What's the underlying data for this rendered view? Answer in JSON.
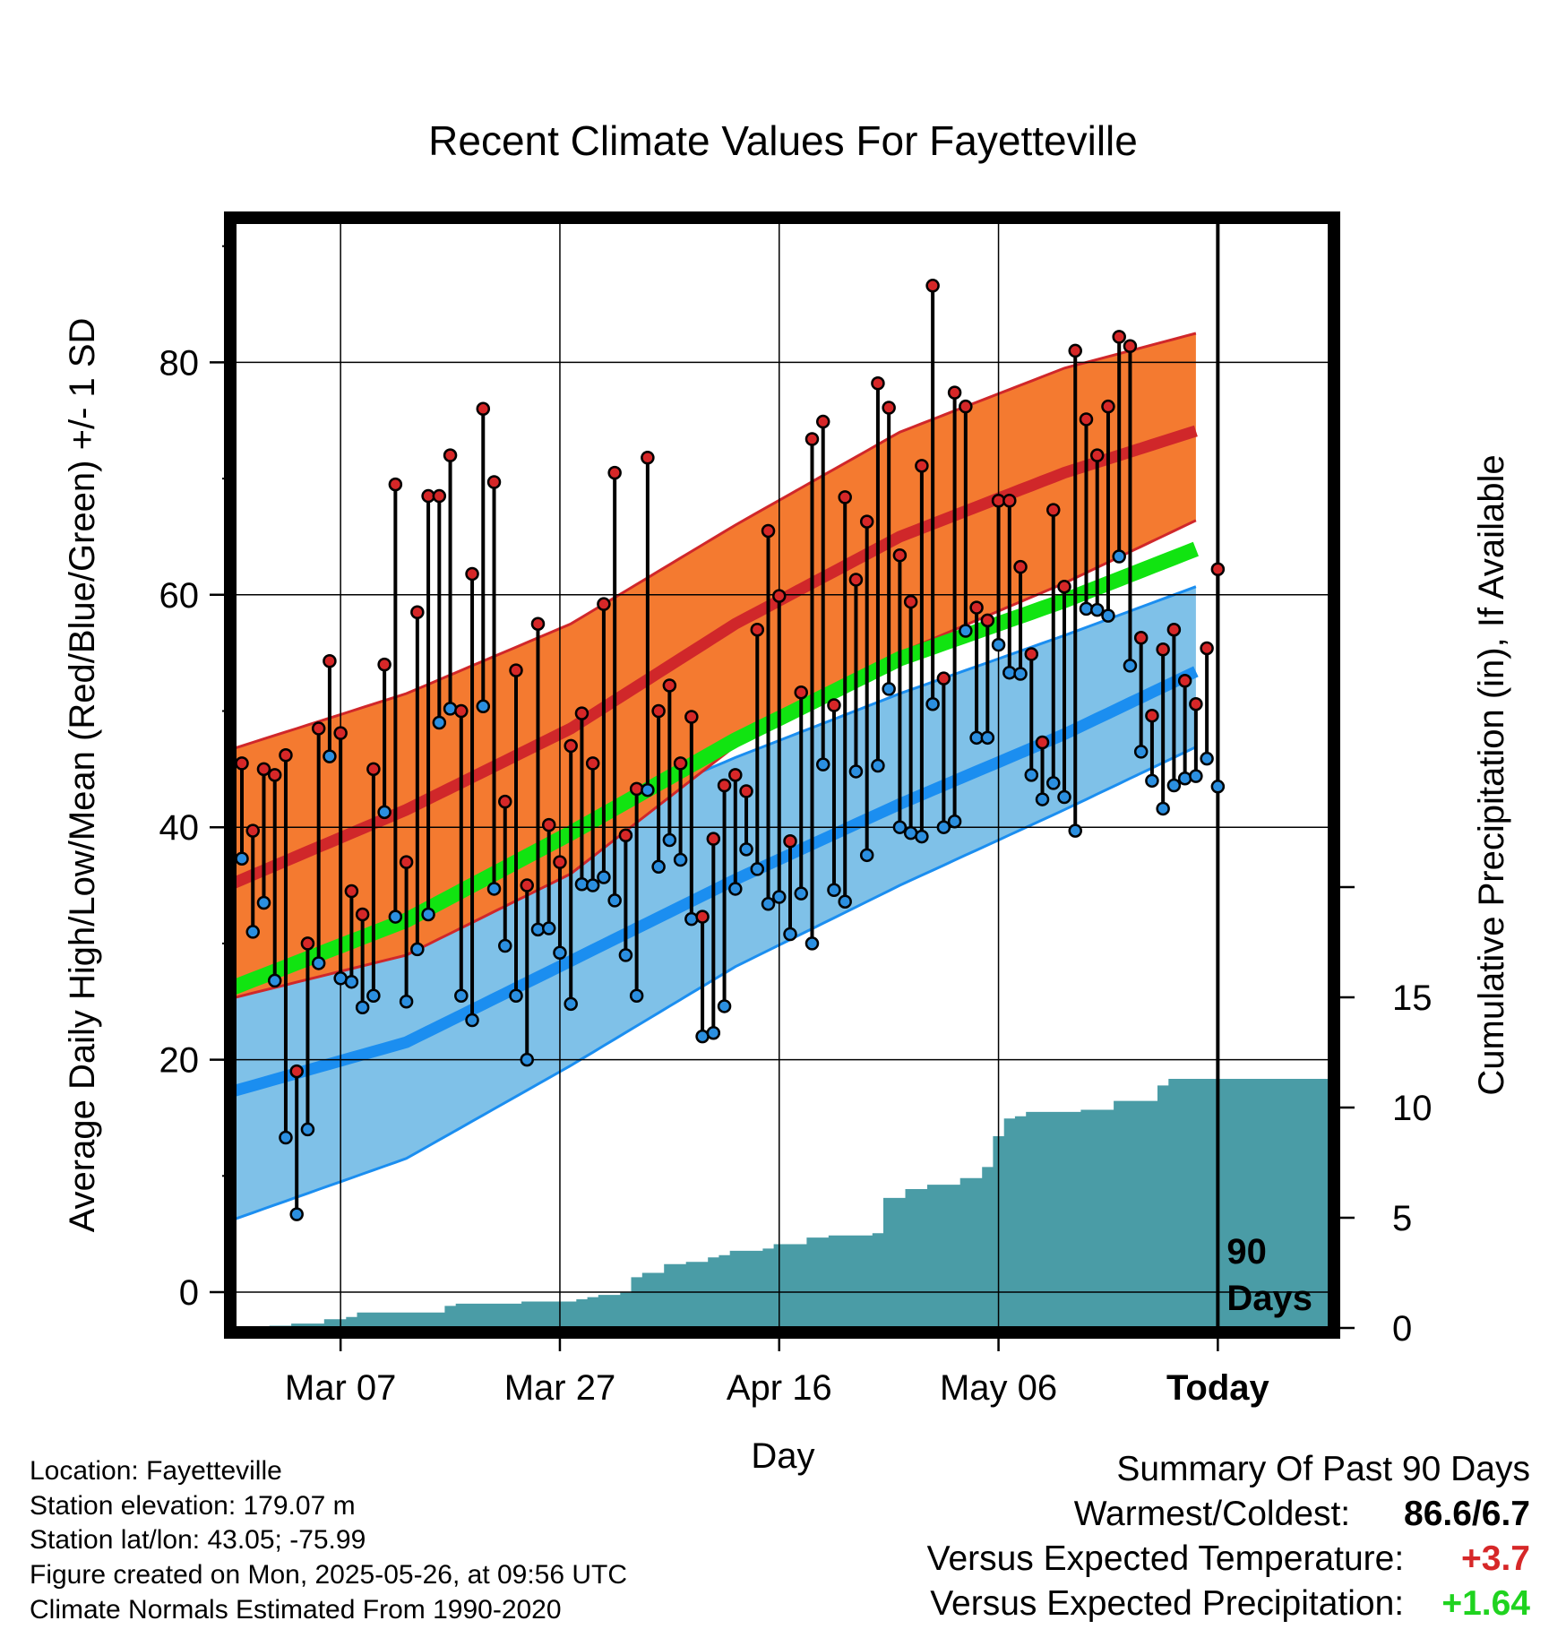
{
  "chart_data": {
    "type": "line",
    "title": "Recent Climate Values For Fayetteville",
    "xlabel": "Day",
    "ylabel": "Average Daily High/Low/Mean (Red/Blue/Green) +/- 1 SD",
    "y2label": "Cumulative Precipitation (in), If Available",
    "ylim": [
      -3,
      92
    ],
    "y2lim": [
      0,
      29.6
    ],
    "yticks": [
      "0",
      "20",
      "40",
      "60",
      "80"
    ],
    "y2ticks": [
      "0",
      "5",
      "10",
      "15"
    ],
    "xticks": [
      "Mar 07",
      "Mar 27",
      "Apr 16",
      "May 06",
      "Today"
    ],
    "today_label": [
      "90",
      "Days"
    ],
    "normals": {
      "high_mean": [
        35.5,
        41.5,
        48.5,
        57.5,
        65,
        70.5,
        73.5
      ],
      "high_upper": [
        47,
        51.5,
        57.5,
        66,
        74,
        79.5,
        82
      ],
      "high_lower": [
        25.5,
        29,
        36,
        47,
        55,
        61,
        65.5
      ],
      "low_mean": [
        17.5,
        21.5,
        28.5,
        35.5,
        42,
        48,
        52.5
      ],
      "low_upper": [
        29.5,
        34,
        40,
        46,
        51.5,
        56.5,
        60
      ],
      "low_lower": [
        6.5,
        11.5,
        19.5,
        28,
        35,
        41.5,
        46
      ],
      "daily_mean": [
        26.5,
        32,
        39.5,
        47.5,
        54.5,
        59.5,
        63.2
      ]
    },
    "series": [
      {
        "name": "High",
        "values": [
          45.5,
          39.7,
          45,
          44.5,
          46.2,
          19,
          30,
          48.5,
          54.3,
          48.1,
          34.5,
          32.5,
          45,
          54,
          69.5,
          37,
          58.5,
          68.5,
          68.5,
          72,
          50,
          61.8,
          76,
          69.7,
          42.2,
          53.5,
          35,
          57.5,
          40.2,
          37,
          47,
          49.8,
          45.5,
          59.2,
          70.5,
          39.3,
          43.3,
          71.8,
          50,
          52.2,
          45.5,
          49.5,
          32.3,
          39,
          43.6,
          44.5,
          43.1,
          57,
          65.5,
          59.9,
          38.8,
          51.6,
          73.4,
          74.9,
          50.5,
          68.4,
          61.3,
          66.3,
          78.2,
          76.1,
          63.4,
          59.4,
          71.1,
          86.6,
          52.8,
          77.4,
          76.2,
          58.9,
          57.8,
          68.1,
          68.1,
          62.4,
          54.9,
          47.3,
          67.3,
          60.7,
          81,
          75.1,
          72,
          76.2,
          82.2,
          81.4,
          56.3,
          49.6,
          55.3,
          57,
          52.6,
          50.6,
          55.4,
          62.2
        ]
      },
      {
        "name": "Low",
        "values": [
          37.3,
          31,
          33.5,
          26.8,
          13.3,
          6.7,
          14,
          28.3,
          46.1,
          27,
          26.7,
          24.5,
          25.5,
          41.3,
          32.3,
          25,
          29.5,
          32.5,
          49,
          50.2,
          25.5,
          23.4,
          50.4,
          34.7,
          29.8,
          25.5,
          20,
          31.2,
          31.3,
          29.2,
          24.8,
          35.1,
          35,
          35.7,
          33.7,
          29,
          25.5,
          43.2,
          36.6,
          38.9,
          37.2,
          32.1,
          22,
          22.3,
          24.6,
          34.7,
          38.1,
          36.4,
          33.4,
          34,
          30.8,
          34.3,
          30,
          45.4,
          34.6,
          33.6,
          44.8,
          37.6,
          45.3,
          51.9,
          40,
          39.5,
          39.2,
          50.6,
          40,
          40.5,
          56.9,
          47.7,
          47.7,
          55.7,
          53.3,
          53.2,
          44.5,
          42.4,
          43.8,
          42.6,
          39.7,
          58.8,
          58.7,
          58.2,
          63.3,
          53.9,
          46.5,
          44,
          41.6,
          43.6,
          44.2,
          44.4,
          45.9,
          43.5
        ]
      }
    ],
    "precip_cumulative": [
      0,
      0,
      0,
      0.1,
      0.1,
      0.2,
      0.2,
      0.2,
      0.4,
      0.4,
      0.5,
      0.7,
      0.7,
      0.7,
      0.7,
      0.7,
      0.7,
      0.7,
      0.7,
      1,
      1.1,
      1.1,
      1.1,
      1.1,
      1.1,
      1.1,
      1.2,
      1.2,
      1.2,
      1.2,
      1.2,
      1.3,
      1.4,
      1.5,
      1.5,
      1.6,
      2.3,
      2.5,
      2.5,
      2.9,
      2.9,
      3,
      3,
      3.2,
      3.3,
      3.5,
      3.5,
      3.5,
      3.6,
      3.8,
      3.8,
      3.8,
      4.1,
      4.1,
      4.2,
      4.2,
      4.2,
      4.2,
      4.3,
      5.9,
      5.9,
      6.3,
      6.3,
      6.5,
      6.5,
      6.5,
      6.8,
      6.8,
      7.3,
      8.7,
      9.5,
      9.6,
      9.8,
      9.8,
      9.8,
      9.8,
      9.8,
      9.9,
      9.9,
      9.9,
      10.3,
      10.3,
      10.3,
      10.3,
      11,
      11.3,
      11.3,
      11.3,
      11.3,
      11.3
    ]
  },
  "footer": {
    "location": "Location: Fayetteville",
    "elevation": "Station elevation: 179.07 m",
    "latlon": "Station lat/lon: 43.05; -75.99",
    "created": "Figure created on Mon, 2025-05-26, at 09:56 UTC",
    "normals": "Climate Normals Estimated From 1990-2020"
  },
  "summary": {
    "heading": "Summary Of Past 90 Days",
    "warmest_label": "Warmest/Coldest:",
    "warmest_value": "86.6/6.7",
    "temp_label": "Versus Expected Temperature:",
    "temp_value": "+3.7",
    "precip_label": "Versus Expected Precipitation:",
    "precip_value": "+1.64",
    "colors": {
      "temp": "#d62728",
      "precip": "#1fd31f"
    }
  },
  "colors": {
    "high_band": "#f47a30",
    "high_mean": "#d0272a",
    "low_band": "#7fc1e8",
    "low_mean": "#1b8ef0",
    "daily_mean": "#11e411",
    "precip": "#4a9ca6",
    "high_point": "#d62728",
    "low_point": "#2b8fe0"
  }
}
